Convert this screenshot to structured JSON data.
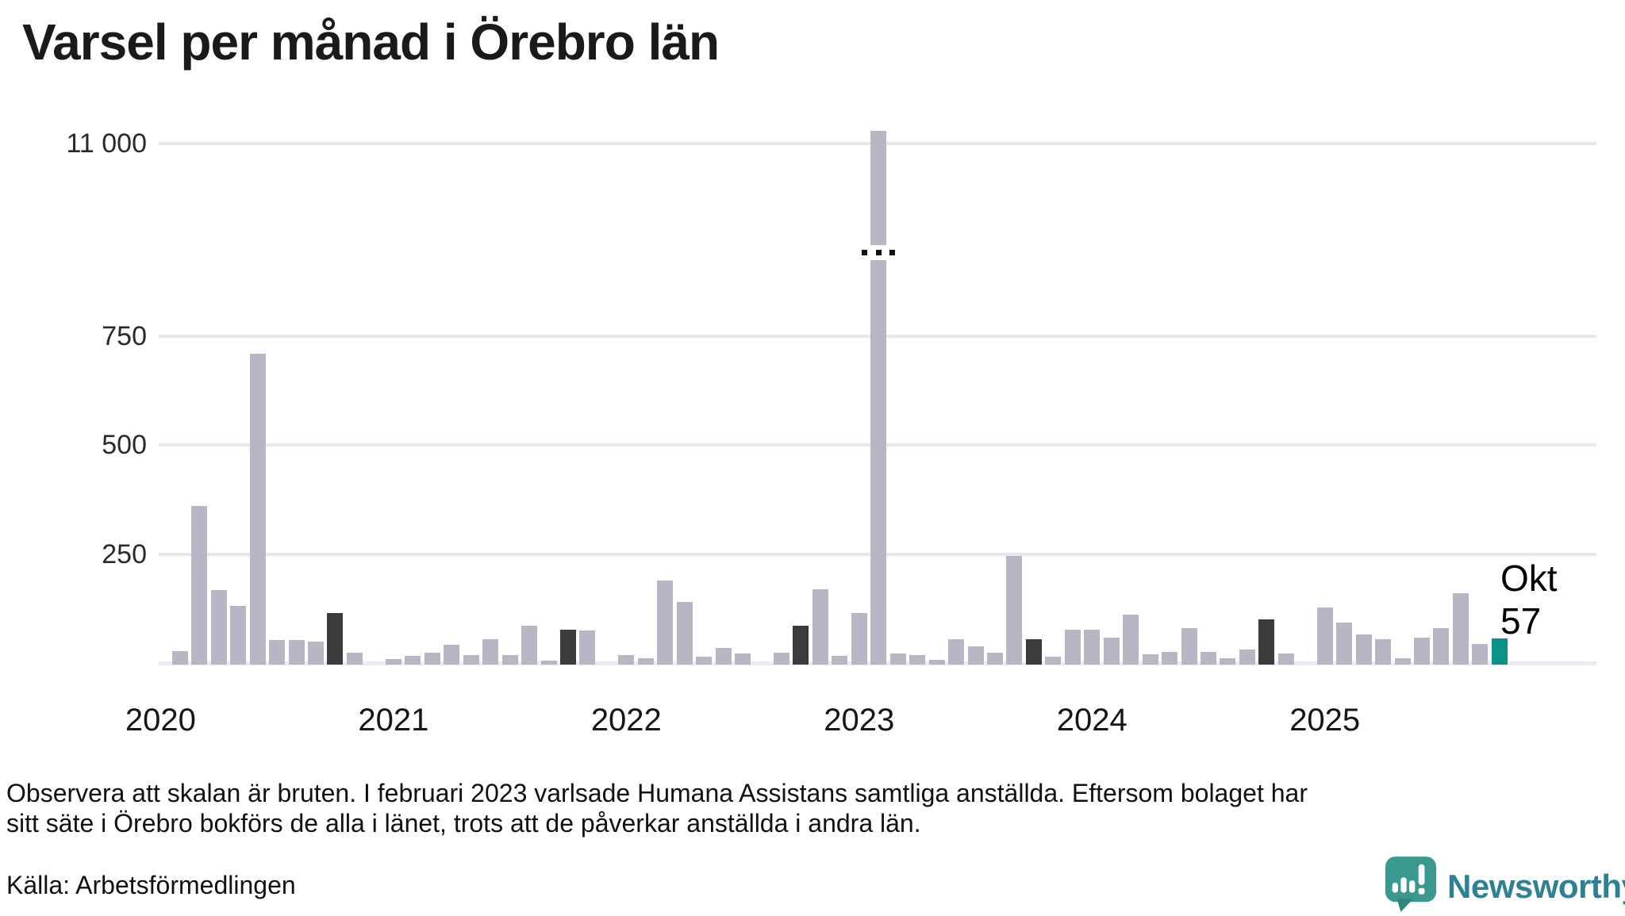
{
  "title": "Varsel per månad i Örebro län",
  "y_axis": {
    "tick_labels": [
      "11 000",
      "750",
      "500",
      "250"
    ],
    "tick_values": [
      11000,
      750,
      500,
      250
    ],
    "broken_scale": true,
    "break_between": [
      750,
      11000
    ]
  },
  "x_axis": {
    "year_labels": [
      "2020",
      "2021",
      "2022",
      "2023",
      "2024",
      "2025"
    ]
  },
  "annotation": {
    "month_label": "Okt",
    "value_label": "57"
  },
  "footnote": {
    "line1": "Observera att skalan är bruten. I februari 2023 varlsade Humana Assistans samtliga anställda. Eftersom bolaget har",
    "line2": "sitt säte i Örebro bokförs de alla i länet, trots att de påverkar anställda i andra län."
  },
  "source": "Källa: Arbetsförmedlingen",
  "logo": {
    "text": "Newsworthy"
  },
  "colors": {
    "bar": "#b9b5c4",
    "highlight_dark": "#3b3b3d",
    "highlight_teal": "#0a9287",
    "gridline": "#e8e7ee",
    "axis_line": "#ececf2",
    "text": "#1a1a1a",
    "logo_icon": "#3a998e",
    "logo_tail": "#2e867c",
    "logo_text": "#2e8093"
  },
  "chart_data": {
    "type": "bar",
    "title": "Varsel per månad i Örebro län",
    "xlabel": "",
    "ylabel": "",
    "grid": true,
    "legend": false,
    "broken_y_scale": true,
    "y_gridlines": [
      250,
      500,
      750,
      11000
    ],
    "highlight_dark_months": [
      "2020-10",
      "2021-10",
      "2022-10",
      "2023-10",
      "2024-10"
    ],
    "highlight_teal_month": "2025-10",
    "broken_bar_month": "2023-02",
    "months": [
      {
        "m": "2020-01",
        "v": 0
      },
      {
        "m": "2020-02",
        "v": 28
      },
      {
        "m": "2020-03",
        "v": 360
      },
      {
        "m": "2020-04",
        "v": 168
      },
      {
        "m": "2020-05",
        "v": 131
      },
      {
        "m": "2020-06",
        "v": 710
      },
      {
        "m": "2020-07",
        "v": 53
      },
      {
        "m": "2020-08",
        "v": 53
      },
      {
        "m": "2020-09",
        "v": 50
      },
      {
        "m": "2020-10",
        "v": 114
      },
      {
        "m": "2020-11",
        "v": 23
      },
      {
        "m": "2020-12",
        "v": 0
      },
      {
        "m": "2021-01",
        "v": 9
      },
      {
        "m": "2021-02",
        "v": 16
      },
      {
        "m": "2021-03",
        "v": 24
      },
      {
        "m": "2021-04",
        "v": 42
      },
      {
        "m": "2021-05",
        "v": 18
      },
      {
        "m": "2021-06",
        "v": 54
      },
      {
        "m": "2021-07",
        "v": 19
      },
      {
        "m": "2021-08",
        "v": 85
      },
      {
        "m": "2021-09",
        "v": 5
      },
      {
        "m": "2021-10",
        "v": 77
      },
      {
        "m": "2021-11",
        "v": 74
      },
      {
        "m": "2021-12",
        "v": 0
      },
      {
        "m": "2022-01",
        "v": 18
      },
      {
        "m": "2022-02",
        "v": 11
      },
      {
        "m": "2022-03",
        "v": 190
      },
      {
        "m": "2022-04",
        "v": 141
      },
      {
        "m": "2022-05",
        "v": 14
      },
      {
        "m": "2022-06",
        "v": 35
      },
      {
        "m": "2022-07",
        "v": 21
      },
      {
        "m": "2022-08",
        "v": 0
      },
      {
        "m": "2022-09",
        "v": 24
      },
      {
        "m": "2022-10",
        "v": 86
      },
      {
        "m": "2022-11",
        "v": 170
      },
      {
        "m": "2022-12",
        "v": 17
      },
      {
        "m": "2023-01",
        "v": 115
      },
      {
        "m": "2023-02",
        "v": 11650
      },
      {
        "m": "2023-03",
        "v": 22
      },
      {
        "m": "2023-04",
        "v": 18
      },
      {
        "m": "2023-05",
        "v": 7
      },
      {
        "m": "2023-06",
        "v": 54
      },
      {
        "m": "2023-07",
        "v": 38
      },
      {
        "m": "2023-08",
        "v": 23
      },
      {
        "m": "2023-09",
        "v": 245
      },
      {
        "m": "2023-10",
        "v": 54
      },
      {
        "m": "2023-11",
        "v": 14
      },
      {
        "m": "2023-12",
        "v": 77
      },
      {
        "m": "2024-01",
        "v": 76
      },
      {
        "m": "2024-02",
        "v": 58
      },
      {
        "m": "2024-03",
        "v": 111
      },
      {
        "m": "2024-04",
        "v": 20
      },
      {
        "m": "2024-05",
        "v": 25
      },
      {
        "m": "2024-06",
        "v": 80
      },
      {
        "m": "2024-07",
        "v": 26
      },
      {
        "m": "2024-08",
        "v": 11
      },
      {
        "m": "2024-09",
        "v": 31
      },
      {
        "m": "2024-10",
        "v": 100
      },
      {
        "m": "2024-11",
        "v": 21
      },
      {
        "m": "2024-12",
        "v": 0
      },
      {
        "m": "2025-01",
        "v": 127
      },
      {
        "m": "2025-02",
        "v": 93
      },
      {
        "m": "2025-03",
        "v": 66
      },
      {
        "m": "2025-04",
        "v": 54
      },
      {
        "m": "2025-05",
        "v": 11
      },
      {
        "m": "2025-06",
        "v": 58
      },
      {
        "m": "2025-07",
        "v": 81
      },
      {
        "m": "2025-08",
        "v": 160
      },
      {
        "m": "2025-09",
        "v": 44
      },
      {
        "m": "2025-10",
        "v": 57
      }
    ]
  }
}
